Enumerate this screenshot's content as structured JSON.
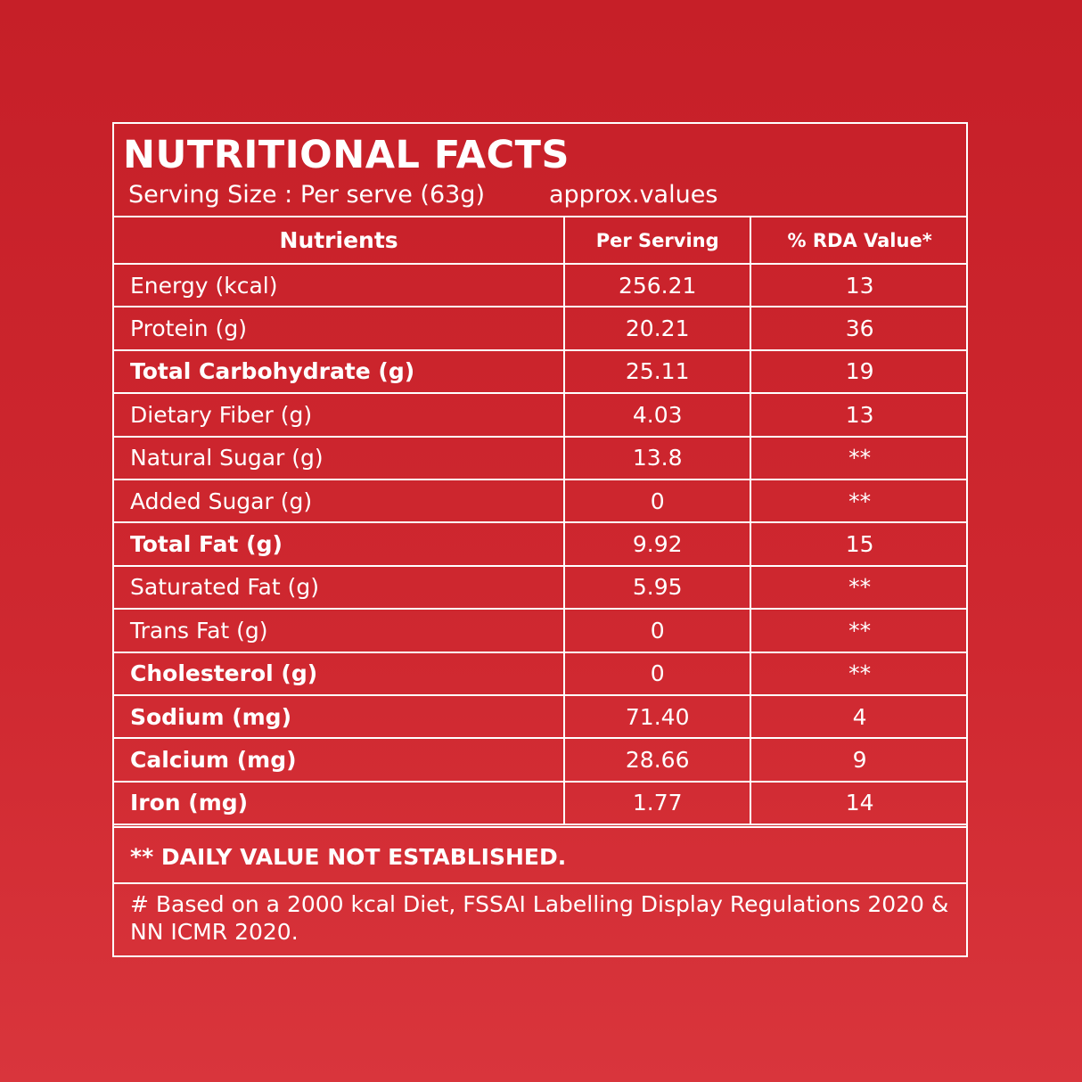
{
  "header": {
    "title": "NUTRITIONAL FACTS",
    "serving": "Serving Size : Per serve (63g)",
    "approx": "approx.values"
  },
  "table": {
    "columns": [
      "Nutrients",
      "Per Serving",
      "% RDA Value*"
    ],
    "rows": [
      {
        "nutrient": "Energy (kcal)",
        "per_serving": "256.21",
        "rda": "13"
      },
      {
        "nutrient": "Protein (g)",
        "per_serving": "20.21",
        "rda": "36"
      },
      {
        "nutrient": "Total Carbohydrate (g)",
        "per_serving": "25.11",
        "rda": "19",
        "bold": true
      },
      {
        "nutrient": "Dietary Fiber (g)",
        "per_serving": "4.03",
        "rda": "13"
      },
      {
        "nutrient": "Natural Sugar (g)",
        "per_serving": "13.8",
        "rda": "**"
      },
      {
        "nutrient": "Added Sugar (g)",
        "per_serving": "0",
        "rda": "**"
      },
      {
        "nutrient": "Total Fat (g)",
        "per_serving": "9.92",
        "rda": "15",
        "bold": true
      },
      {
        "nutrient": "Saturated Fat (g)",
        "per_serving": "5.95",
        "rda": "**"
      },
      {
        "nutrient": "Trans Fat (g)",
        "per_serving": "0",
        "rda": "**"
      },
      {
        "nutrient": "Cholesterol (g)",
        "per_serving": "0",
        "rda": "**",
        "bold": true
      },
      {
        "nutrient": "Sodium (mg)",
        "per_serving": "71.40",
        "rda": "4",
        "bold": true
      },
      {
        "nutrient": "Calcium (mg)",
        "per_serving": "28.66",
        "rda": "9",
        "bold": true
      },
      {
        "nutrient": "Iron (mg)",
        "per_serving": "1.77",
        "rda": "14",
        "bold": true
      }
    ]
  },
  "footnotes": [
    "** DAILY VALUE NOT ESTABLISHED.",
    "# Based on a 2000 kcal Diet, FSSAI Labelling Display Regulations 2020 & NN ICMR 2020."
  ]
}
